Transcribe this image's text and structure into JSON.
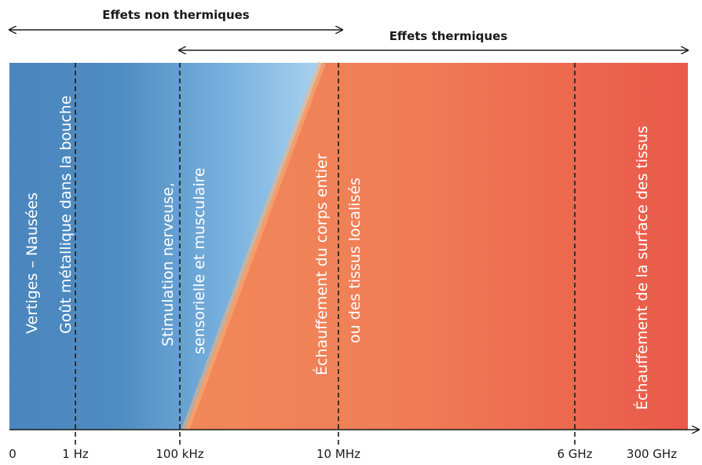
{
  "headers": {
    "non_thermal": "Effets non thermiques",
    "thermal": "Effets thermiques"
  },
  "band_labels": [
    [
      "Vertiges – Nausées",
      "Goût métallique dans la bouche"
    ],
    [
      "Stimulation nerveuse,",
      "sensorielle et musculaire"
    ],
    [
      "Échauffement du corps entier",
      "ou des tissus localisés"
    ],
    [
      "Échauffement de la surface des tissus"
    ]
  ],
  "axis": {
    "ticks": [
      "0",
      "1 Hz",
      "100 kHz",
      "10 MHz",
      "6 GHz",
      "300 GHz"
    ]
  },
  "colors": {
    "blue_dark": "#4a86bd",
    "blue_light": "#a9d2f0",
    "orange": "#f2925c",
    "red": "#e9594a",
    "text": "#1a1a1a"
  }
}
